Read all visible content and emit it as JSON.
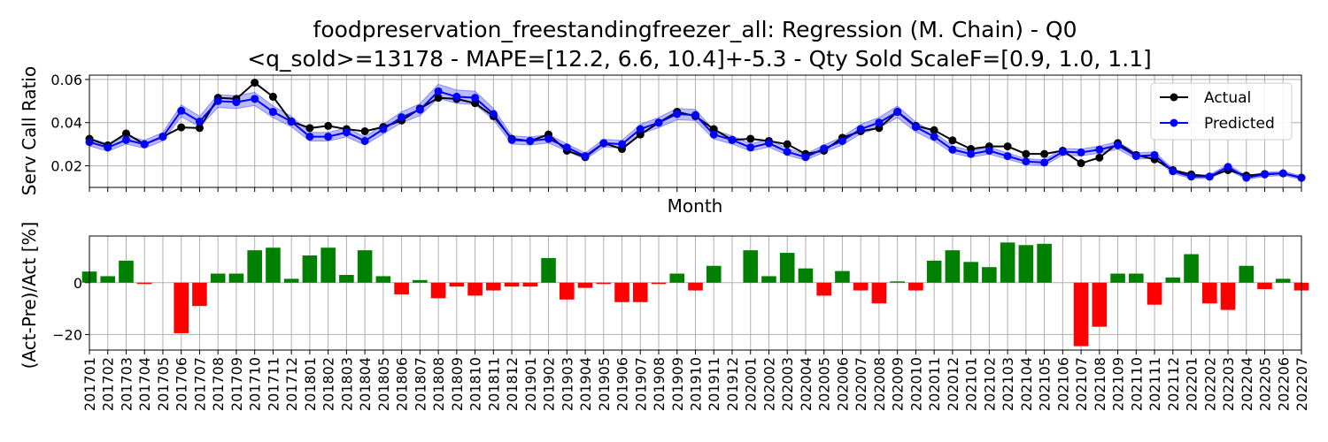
{
  "title_line1": "foodpreservation_freestandingfreezer_all: Regression (M. Chain) - Q0",
  "title_line2": "<q_sold>=13178 - MAPE=[12.2, 6.6, 10.4]+-5.3 - Qty Sold ScaleF=[0.9, 1.0, 1.1]",
  "colors": {
    "actual": "#000000",
    "predicted": "#0000ff",
    "band": "#8080ff",
    "positive": "#008000",
    "negative": "#ff0000",
    "grid": "#b0b0b0"
  },
  "chart_data": [
    {
      "type": "line",
      "xlabel": "Month",
      "ylabel": "Serv Call Ratio",
      "ylim": [
        0.01,
        0.062
      ],
      "yticks": [
        "0.02",
        "0.04",
        "0.06"
      ],
      "grid": true,
      "legend_placement": "top-right",
      "series": [
        {
          "name": "Actual",
          "values": [
            0.0325,
            0.0295,
            0.035,
            0.03,
            0.0335,
            0.0378,
            0.0375,
            0.0515,
            0.051,
            0.0585,
            0.052,
            0.0405,
            0.0375,
            0.0385,
            0.037,
            0.036,
            0.038,
            0.041,
            0.0465,
            0.0515,
            0.051,
            0.049,
            0.043,
            0.0325,
            0.0315,
            0.0345,
            0.027,
            0.024,
            0.0305,
            0.0278,
            0.0345,
            0.04,
            0.045,
            0.043,
            0.037,
            0.032,
            0.0325,
            0.0315,
            0.03,
            0.0255,
            0.027,
            0.033,
            0.036,
            0.0375,
            0.045,
            0.0385,
            0.0365,
            0.0318,
            0.0278,
            0.029,
            0.029,
            0.0255,
            0.0255,
            0.027,
            0.0212,
            0.0238,
            0.0305,
            0.025,
            0.023,
            0.018,
            0.016,
            0.015,
            0.018,
            0.0155,
            0.0162,
            0.0165,
            0.0145
          ]
        },
        {
          "name": "Predicted",
          "values": [
            0.031,
            0.0285,
            0.032,
            0.03,
            0.0335,
            0.0455,
            0.0405,
            0.05,
            0.0495,
            0.051,
            0.045,
            0.0405,
            0.0335,
            0.0335,
            0.0355,
            0.0315,
            0.037,
            0.0425,
            0.046,
            0.0545,
            0.052,
            0.0515,
            0.044,
            0.032,
            0.0315,
            0.0325,
            0.0285,
            0.0245,
            0.0305,
            0.03,
            0.037,
            0.04,
            0.044,
            0.0435,
            0.0345,
            0.032,
            0.0285,
            0.0305,
            0.0265,
            0.024,
            0.028,
            0.0315,
            0.037,
            0.04,
            0.045,
            0.038,
            0.0335,
            0.0275,
            0.0255,
            0.027,
            0.0245,
            0.022,
            0.0215,
            0.0265,
            0.0262,
            0.0275,
            0.0295,
            0.0245,
            0.025,
            0.0175,
            0.015,
            0.015,
            0.0195,
            0.0145,
            0.016,
            0.0165,
            0.0145
          ]
        }
      ]
    },
    {
      "type": "bar",
      "xlabel": "",
      "ylabel": "(Act-Pre)/Act [%]",
      "ylim": [
        -26,
        18
      ],
      "yticks": [
        "−20",
        "0"
      ],
      "grid": true,
      "categories": [
        "201701",
        "201702",
        "201703",
        "201704",
        "201705",
        "201706",
        "201707",
        "201708",
        "201709",
        "201710",
        "201711",
        "201712",
        "201801",
        "201802",
        "201803",
        "201804",
        "201805",
        "201806",
        "201807",
        "201808",
        "201809",
        "201810",
        "201811",
        "201812",
        "201901",
        "201902",
        "201903",
        "201904",
        "201905",
        "201906",
        "201907",
        "201908",
        "201909",
        "201910",
        "201911",
        "201912",
        "202001",
        "202002",
        "202003",
        "202004",
        "202005",
        "202006",
        "202007",
        "202008",
        "202009",
        "202010",
        "202011",
        "202012",
        "202101",
        "202102",
        "202103",
        "202104",
        "202105",
        "202106",
        "202107",
        "202108",
        "202109",
        "202110",
        "202111",
        "202112",
        "202201",
        "202202",
        "202203",
        "202204",
        "202205",
        "202206",
        "202207"
      ],
      "values": [
        4.3,
        2.5,
        8.5,
        -0.5,
        0.0,
        -19.5,
        -9.0,
        3.5,
        3.5,
        12.5,
        13.5,
        1.5,
        10.5,
        13.5,
        3.0,
        12.5,
        2.5,
        -4.5,
        1.0,
        -6.0,
        -1.5,
        -5.0,
        -3.0,
        -1.5,
        -1.5,
        9.5,
        -6.5,
        -2.0,
        -0.5,
        -7.5,
        -7.5,
        -0.5,
        3.5,
        -3.0,
        6.5,
        0.0,
        12.5,
        2.5,
        11.5,
        5.5,
        -5.0,
        4.5,
        -3.0,
        -8.0,
        0.5,
        -3.0,
        8.5,
        12.5,
        8.0,
        6.0,
        15.5,
        14.5,
        15.0,
        0.0,
        -24.5,
        -17.0,
        3.5,
        3.5,
        -8.5,
        2.0,
        11.0,
        -8.0,
        -10.5,
        6.5,
        -2.5,
        1.5,
        -3.0
      ]
    }
  ]
}
